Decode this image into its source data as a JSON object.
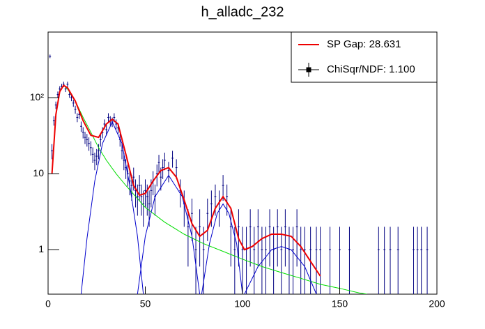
{
  "chart_data": {
    "type": "line",
    "title": "h_alladc_232",
    "xlim": [
      0,
      200
    ],
    "xticks": [
      0,
      50,
      100,
      150,
      200
    ],
    "ylim": [
      0.26,
      730
    ],
    "log_y": true,
    "yticks": [
      1,
      10,
      {
        "value": 100,
        "label": "10²"
      }
    ],
    "legend_position": "top-right",
    "series": [
      {
        "name": "ChiSqr/NDF: 1.100",
        "color": "#000080",
        "style": "points",
        "x": [
          1,
          2,
          3,
          4,
          5,
          6,
          7,
          8,
          9,
          10,
          11,
          12,
          13,
          14,
          15,
          16,
          17,
          18,
          19,
          20,
          21,
          22,
          23,
          24,
          25,
          26,
          27,
          28,
          29,
          30,
          31,
          32,
          33,
          34,
          35,
          36,
          37,
          38,
          39,
          40,
          41,
          42,
          43,
          44,
          45,
          46,
          47,
          48,
          49,
          50,
          51,
          52,
          53,
          54,
          55,
          56,
          57,
          58,
          59,
          60,
          62,
          64,
          66,
          68,
          70,
          72,
          74,
          76,
          78,
          80,
          82,
          84,
          86,
          88,
          90,
          92,
          94,
          96,
          98,
          100,
          102,
          104,
          106,
          108,
          110,
          112,
          114,
          116,
          118,
          120,
          122,
          124,
          126,
          128,
          130,
          132,
          135,
          138,
          140,
          145,
          150,
          155,
          170,
          173,
          176,
          180,
          188,
          190,
          192,
          195
        ],
        "values": [
          350,
          20,
          50,
          80,
          110,
          130,
          140,
          150,
          130,
          150,
          110,
          100,
          85,
          70,
          55,
          60,
          42,
          35,
          30,
          28,
          25,
          22,
          18,
          15,
          17,
          20,
          28,
          35,
          45,
          38,
          55,
          50,
          48,
          55,
          45,
          40,
          28,
          20,
          15,
          12,
          10,
          8,
          7,
          9,
          6,
          5,
          7,
          5,
          4,
          6,
          5,
          4,
          6,
          8,
          5,
          10,
          14,
          9,
          12,
          15,
          11,
          16,
          12,
          6,
          4,
          2,
          3,
          1,
          2,
          1,
          3,
          4,
          5,
          4,
          7,
          5,
          2,
          1,
          2,
          1,
          1,
          2,
          1,
          2,
          1,
          1,
          2,
          1,
          2,
          1,
          2,
          1,
          1,
          2,
          1,
          1,
          1,
          1,
          1,
          1,
          1,
          1,
          1,
          1,
          1,
          1,
          1,
          1,
          1,
          1
        ],
        "errors": [
          18.7,
          4.5,
          7.1,
          8.9,
          10.5,
          11.4,
          11.8,
          12.2,
          11.4,
          12.2,
          10.5,
          10,
          9.2,
          8.4,
          7.4,
          7.7,
          6.5,
          5.9,
          5.5,
          5.3,
          5,
          4.7,
          4.2,
          3.9,
          4.1,
          4.5,
          5.3,
          5.9,
          6.7,
          6.2,
          7.4,
          7.1,
          6.9,
          7.4,
          6.7,
          6.3,
          5.3,
          4.5,
          3.9,
          3.5,
          3.2,
          2.8,
          2.6,
          3,
          2.4,
          2.2,
          2.6,
          2.2,
          2,
          2.4,
          2.2,
          2,
          2.4,
          2.8,
          2.2,
          3.2,
          3.7,
          3,
          3.5,
          3.9,
          3.3,
          4,
          3.5,
          2.4,
          2,
          1.4,
          1.7,
          1,
          1.4,
          1,
          1.7,
          2,
          2.2,
          2,
          2.6,
          2.2,
          1.4,
          1,
          1.4,
          1,
          1,
          1.4,
          1,
          1.4,
          1,
          1,
          1.4,
          1,
          1.4,
          1,
          1.4,
          1,
          1,
          1.4,
          1,
          1,
          1,
          1,
          1,
          1,
          1,
          1,
          1,
          1,
          1,
          1,
          1,
          1,
          1,
          1
        ]
      },
      {
        "color": "#00dd00",
        "style": "line",
        "x": [
          2,
          4,
          6,
          8,
          10,
          14,
          18,
          22,
          26,
          30,
          35,
          40,
          50,
          60,
          70,
          80,
          90,
          100,
          110,
          120,
          130,
          140,
          150,
          160,
          164
        ],
        "values": [
          10,
          60,
          120,
          145,
          130,
          90,
          55,
          35,
          22,
          15,
          10,
          7,
          3.6,
          2.3,
          1.6,
          1.2,
          0.95,
          0.75,
          0.6,
          0.5,
          0.42,
          0.35,
          0.31,
          0.27,
          0.26
        ]
      },
      {
        "color": "#0000cc",
        "style": "line",
        "x": [
          17,
          20,
          24,
          28,
          33,
          38,
          42,
          46,
          49
        ],
        "values": [
          0.26,
          1.4,
          8,
          25,
          48,
          25,
          7,
          1.5,
          0.26
        ]
      },
      {
        "color": "#0000cc",
        "style": "line",
        "x": [
          46,
          50,
          55,
          62,
          69,
          74,
          78
        ],
        "values": [
          0.26,
          1.5,
          5,
          9.5,
          5,
          1.5,
          0.26
        ]
      },
      {
        "color": "#0000cc",
        "style": "line",
        "x": [
          79,
          83,
          87,
          90,
          93,
          97,
          100
        ],
        "values": [
          0.26,
          1.2,
          3,
          4,
          3,
          1.2,
          0.26
        ]
      },
      {
        "color": "#0000cc",
        "style": "line",
        "x": [
          101,
          108,
          115,
          120,
          125,
          132,
          138
        ],
        "values": [
          0.26,
          0.6,
          1,
          1.1,
          1,
          0.6,
          0.26
        ]
      },
      {
        "name": "SP Gap: 28.631",
        "color": "#ee0000",
        "style": "line",
        "x": [
          2,
          4,
          6,
          8,
          10,
          14,
          18,
          22,
          26,
          30,
          33,
          36,
          40,
          44,
          47,
          50,
          54,
          58,
          62,
          66,
          70,
          74,
          78,
          82,
          86,
          90,
          94,
          98,
          101,
          105,
          110,
          115,
          120,
          125,
          130,
          135,
          140
        ],
        "values": [
          10,
          60,
          120,
          145,
          135,
          90,
          50,
          32,
          30,
          45,
          52,
          45,
          18,
          7,
          5.2,
          5.5,
          8,
          11,
          12,
          9,
          4.5,
          2.2,
          1.5,
          1.8,
          3.5,
          5,
          3.5,
          1.4,
          1,
          1.1,
          1.4,
          1.6,
          1.6,
          1.5,
          1.1,
          0.7,
          0.45
        ]
      }
    ]
  }
}
